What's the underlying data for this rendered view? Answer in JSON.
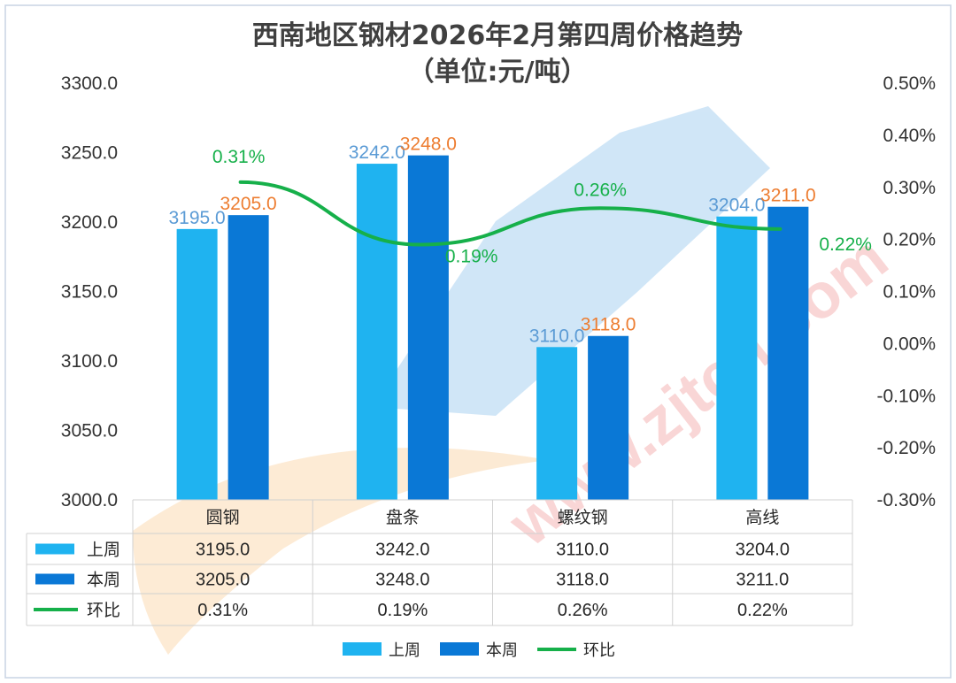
{
  "chart_data": {
    "type": "bar",
    "title": "西南地区钢材2026年2月第四周价格趋势",
    "subtitle": "（单位:元/吨）",
    "categories": [
      "圆钢",
      "盘条",
      "螺纹钢",
      "高线"
    ],
    "series": [
      {
        "name": "上周",
        "type": "bar",
        "axis": "left",
        "color": "#1fb3f0",
        "values": [
          3195.0,
          3242.0,
          3110.0,
          3204.0
        ],
        "labels": [
          "3195.0",
          "3242.0",
          "3110.0",
          "3204.0"
        ]
      },
      {
        "name": "本周",
        "type": "bar",
        "axis": "left",
        "color": "#0a78d6",
        "values": [
          3205.0,
          3248.0,
          3118.0,
          3211.0
        ],
        "labels": [
          "3205.0",
          "3248.0",
          "3118.0",
          "3211.0"
        ]
      },
      {
        "name": "环比",
        "type": "line",
        "axis": "right",
        "color": "#16b04a",
        "values": [
          0.31,
          0.19,
          0.26,
          0.22
        ],
        "labels": [
          "0.31%",
          "0.19%",
          "0.26%",
          "0.22%"
        ]
      }
    ],
    "y_left": {
      "min": 3000,
      "max": 3300,
      "step": 50,
      "ticks": [
        "3000.0",
        "3050.0",
        "3100.0",
        "3150.0",
        "3200.0",
        "3250.0",
        "3300.0"
      ]
    },
    "y_right": {
      "min": -0.3,
      "max": 0.5,
      "step": 0.1,
      "ticks": [
        "-0.30%",
        "-0.20%",
        "-0.10%",
        "0.00%",
        "0.10%",
        "0.20%",
        "0.30%",
        "0.40%",
        "0.50%"
      ]
    },
    "data_table": true,
    "legend_position": "bottom",
    "grid": false
  }
}
